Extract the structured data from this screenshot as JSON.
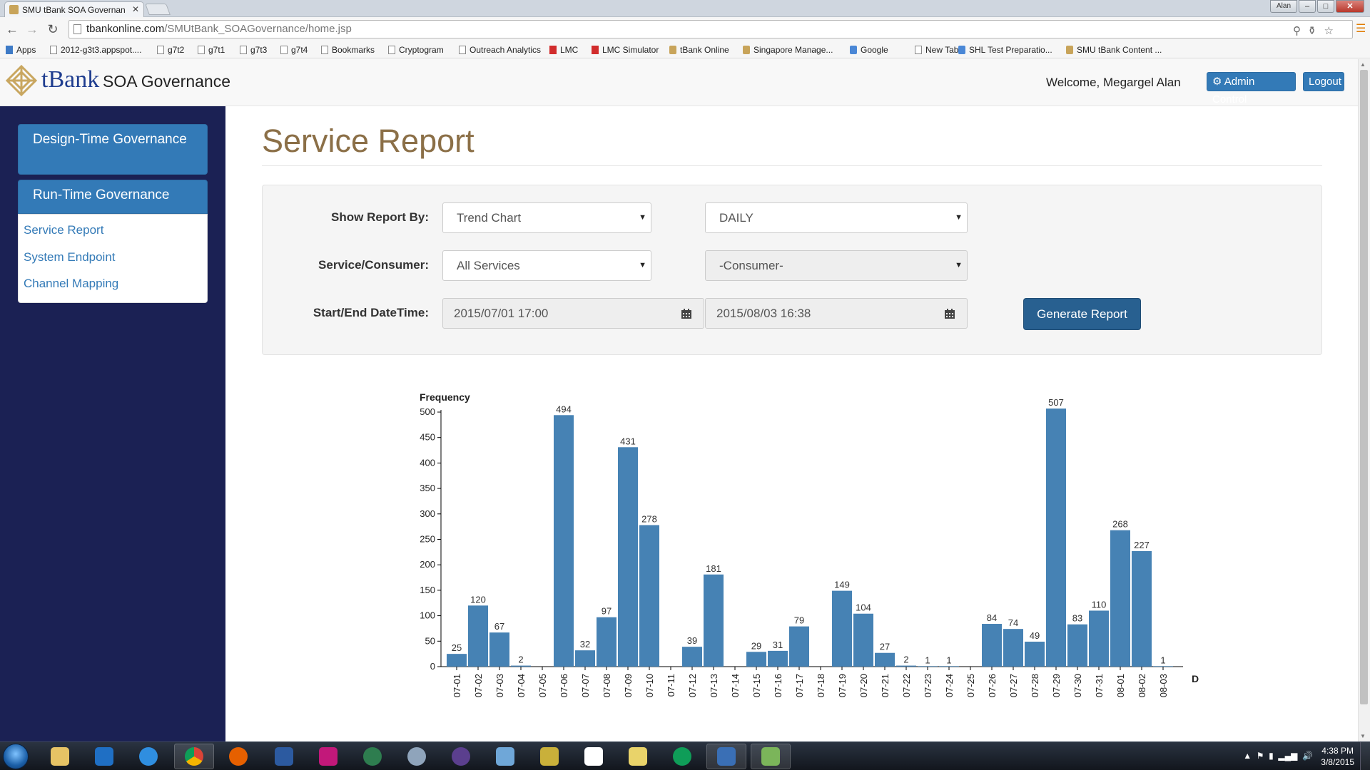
{
  "browser": {
    "tab_title": "SMU tBank SOA Governan",
    "url_domain": "tbankonline.com",
    "url_path": "/SMUtBank_SOAGovernance/home.jsp",
    "window_user": "Alan",
    "bookmarks": [
      {
        "label": "Apps",
        "icon": "apps-grid-icon"
      },
      {
        "label": "2012-g3t3.appspot....",
        "icon": "page-icon"
      },
      {
        "label": "g7t2",
        "icon": "page-icon"
      },
      {
        "label": "g7t1",
        "icon": "page-icon"
      },
      {
        "label": "g7t3",
        "icon": "people-icon"
      },
      {
        "label": "g7t4",
        "icon": "shield-icon"
      },
      {
        "label": "Bookmarks",
        "icon": "star-icon"
      },
      {
        "label": "Cryptogram",
        "icon": "page-icon"
      },
      {
        "label": "Outreach Analytics",
        "icon": "page-icon"
      },
      {
        "label": "LMC",
        "icon": "lmc-icon"
      },
      {
        "label": "LMC Simulator",
        "icon": "lmc-icon"
      },
      {
        "label": "tBank Online",
        "icon": "tbank-icon"
      },
      {
        "label": "Singapore Manage...",
        "icon": "smu-icon"
      },
      {
        "label": "Google",
        "icon": "google-icon"
      },
      {
        "label": "New Tab",
        "icon": "page-icon"
      },
      {
        "label": "SHL Test Preparatio...",
        "icon": "shl-icon"
      },
      {
        "label": "SMU tBank Content ...",
        "icon": "tbank-icon"
      }
    ]
  },
  "header": {
    "brand": "tBank",
    "app_title": "SOA Governance",
    "welcome": "Welcome, Megargel Alan",
    "admin_button": "Admin Control",
    "logout_button": "Logout"
  },
  "sidebar": {
    "design_time": "Design-Time Governance",
    "run_time": "Run-Time Governance",
    "links": [
      "Service Report",
      "System Endpoint",
      "Channel Mapping"
    ]
  },
  "page": {
    "title": "Service Report"
  },
  "filters": {
    "show_report_by_label": "Show Report By:",
    "report_type": "Trend Chart",
    "period": "DAILY",
    "service_consumer_label": "Service/Consumer:",
    "service": "All Services",
    "consumer": "-Consumer-",
    "datetime_label": "Start/End DateTime:",
    "start": "2015/07/01 17:00",
    "end": "2015/08/03 16:38",
    "generate_button": "Generate Report"
  },
  "chart_data": {
    "type": "bar",
    "ylabel": "Frequency",
    "xlabel": "Date",
    "ylim": [
      0,
      500
    ],
    "yticks": [
      0,
      50,
      100,
      150,
      200,
      250,
      300,
      350,
      400,
      450,
      500
    ],
    "color": "#4682b4",
    "categories": [
      "07-01",
      "07-02",
      "07-03",
      "07-04",
      "07-05",
      "07-06",
      "07-07",
      "07-08",
      "07-09",
      "07-10",
      "07-11",
      "07-12",
      "07-13",
      "07-14",
      "07-15",
      "07-16",
      "07-17",
      "07-18",
      "07-19",
      "07-20",
      "07-21",
      "07-22",
      "07-23",
      "07-24",
      "07-25",
      "07-26",
      "07-27",
      "07-28",
      "07-29",
      "07-30",
      "07-31",
      "08-01",
      "08-02",
      "08-03"
    ],
    "values": [
      25,
      120,
      67,
      2,
      0,
      494,
      32,
      97,
      431,
      278,
      0,
      39,
      181,
      0,
      29,
      31,
      79,
      0,
      149,
      104,
      27,
      2,
      1,
      1,
      0,
      84,
      74,
      49,
      507,
      83,
      110,
      268,
      227,
      1
    ]
  },
  "taskbar": {
    "time": "4:38 PM",
    "date": "3/8/2015"
  }
}
